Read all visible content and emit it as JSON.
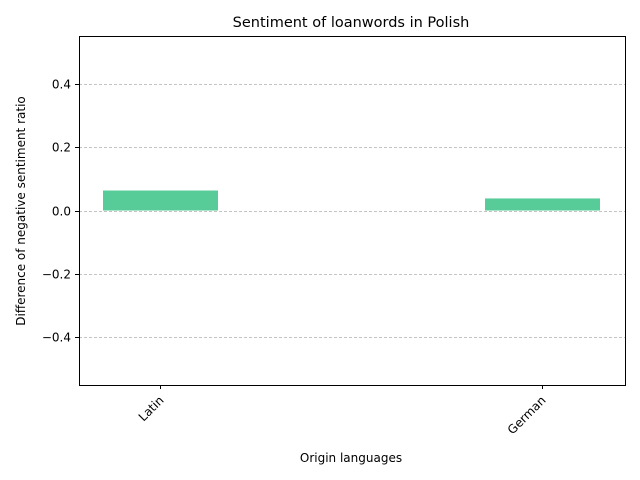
{
  "chart_data": {
    "type": "bar",
    "title": "Sentiment of loanwords in Polish",
    "xlabel": "Origin languages",
    "ylabel": "Difference of negative sentiment ratio",
    "categories": [
      "Latin",
      "German"
    ],
    "values": [
      0.063,
      0.038
    ],
    "ylim": [
      -0.55,
      0.55
    ],
    "yticks": [
      -0.4,
      -0.2,
      0.0,
      0.2,
      0.4
    ],
    "ytick_labels": [
      "−0.4",
      "−0.2",
      "0.0",
      "0.2",
      "0.4"
    ],
    "grid": "y-dashed",
    "bar_color": "#57cc99",
    "grid_color": "#b0b0b0"
  }
}
